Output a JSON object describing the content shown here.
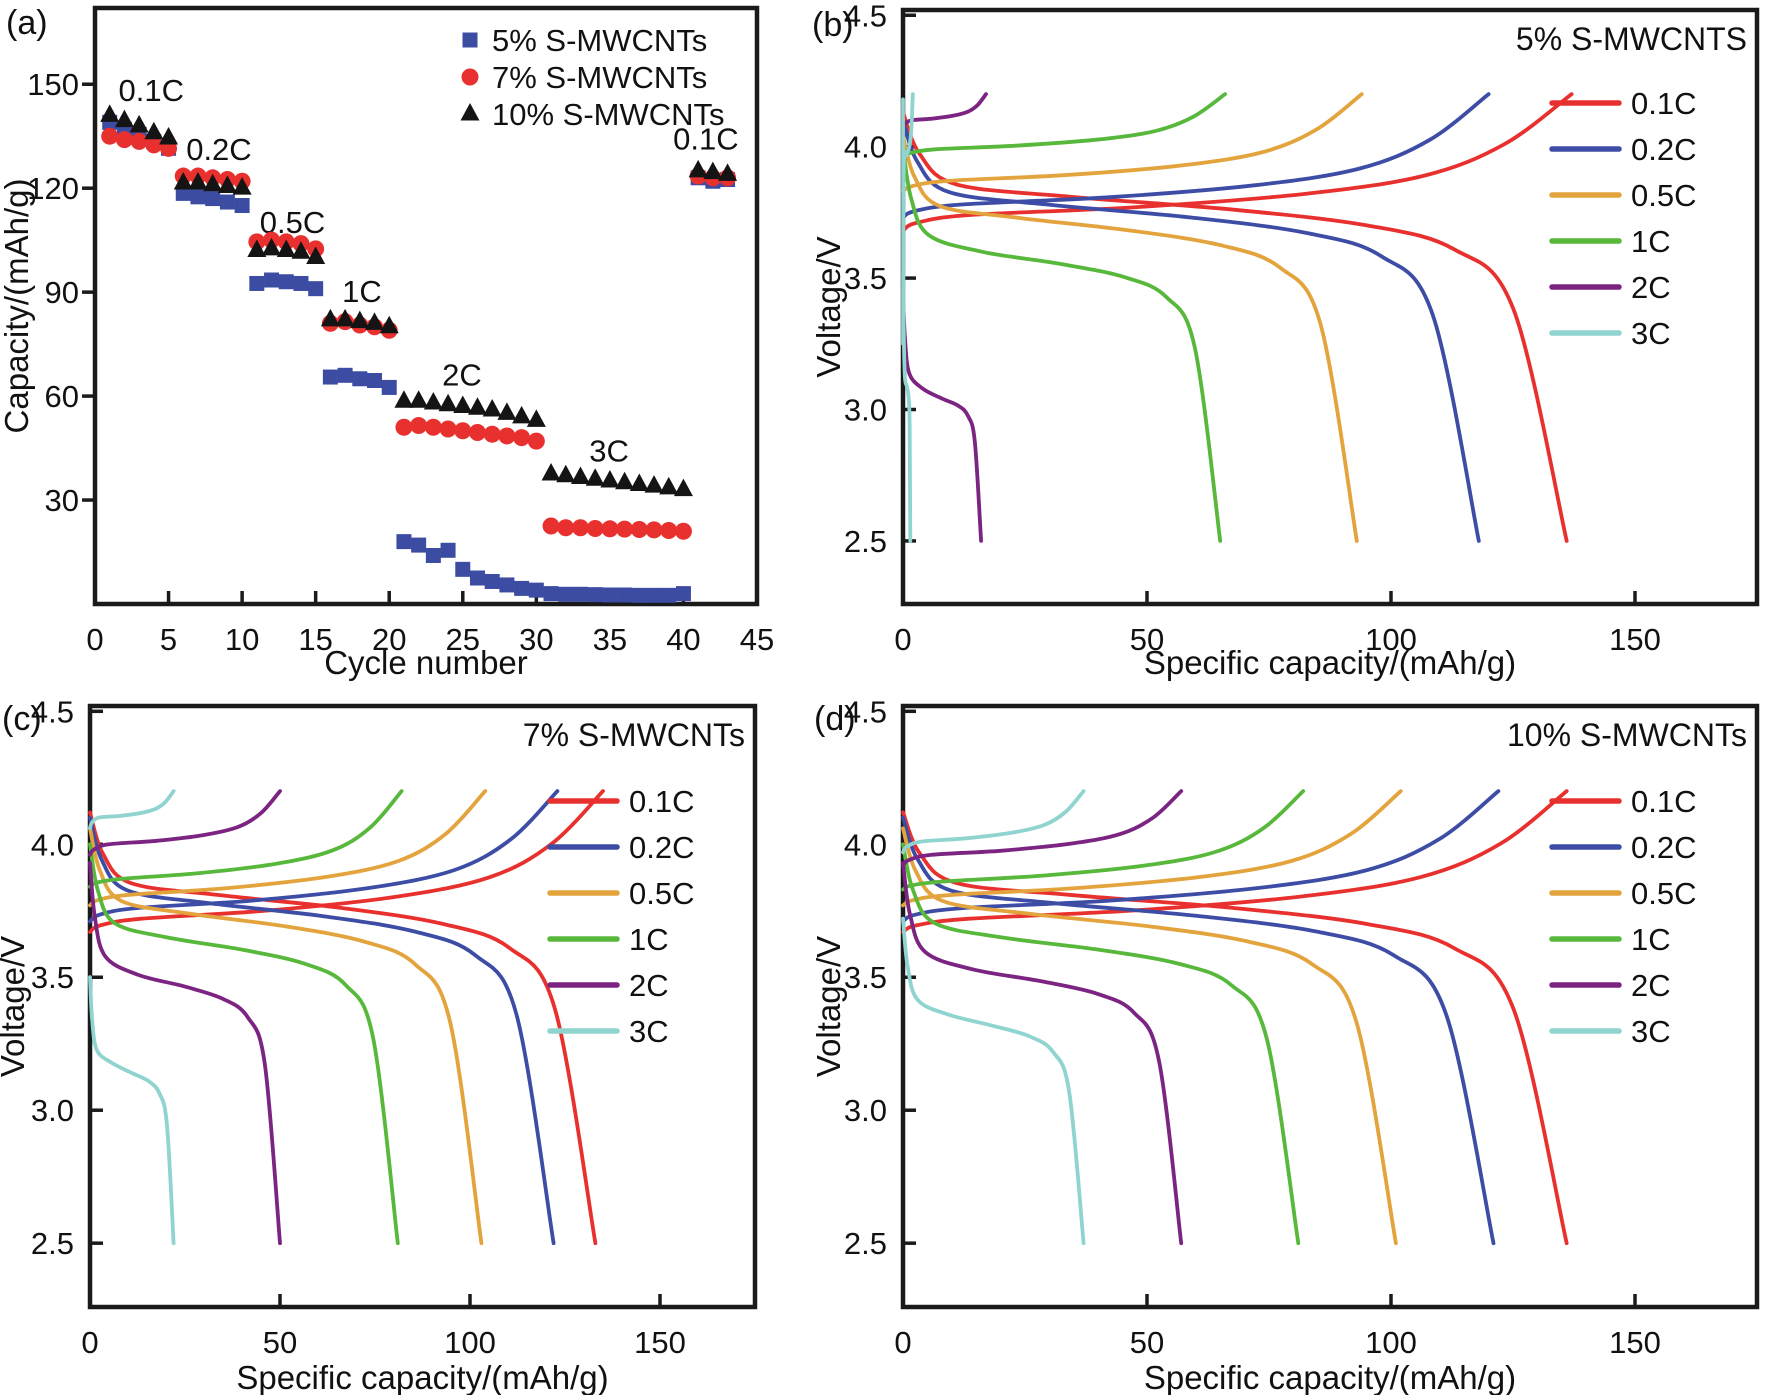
{
  "panel_letters": {
    "a": "(a)",
    "b": "(b)",
    "c": "(c)",
    "d": "(d)"
  },
  "colors": {
    "red": "#e8312e",
    "blue": "#3d4da5",
    "orange": "#e3a33d",
    "green": "#57b83b",
    "purple": "#7b2482",
    "cyan": "#8fd4cf",
    "black": "#141414",
    "scatter_blue": "#3c4ca3",
    "axis": "#1a1a1a"
  },
  "chart_data": [
    {
      "panel": "a",
      "type": "scatter",
      "xlabel": "Cycle number",
      "ylabel": "Capacity/(mAh/g)",
      "xlim": [
        0,
        45
      ],
      "ylim": [
        0,
        172
      ],
      "xticks": [
        {
          "v": 0,
          "l": "0"
        },
        {
          "v": 5,
          "l": "5"
        },
        {
          "v": 10,
          "l": "10"
        },
        {
          "v": 15,
          "l": "15"
        },
        {
          "v": 20,
          "l": "20"
        },
        {
          "v": 25,
          "l": "25"
        },
        {
          "v": 30,
          "l": "30"
        },
        {
          "v": 35,
          "l": "35"
        },
        {
          "v": 40,
          "l": "40"
        },
        {
          "v": 45,
          "l": "45"
        }
      ],
      "yticks": [
        {
          "v": 30,
          "l": "30"
        },
        {
          "v": 60,
          "l": "60"
        },
        {
          "v": 90,
          "l": "90"
        },
        {
          "v": 120,
          "l": "120"
        },
        {
          "v": 150,
          "l": "150"
        }
      ],
      "rate_labels": [
        {
          "t": "0.1C",
          "x": 1.6,
          "y": 148
        },
        {
          "t": "0.2C",
          "x": 6.2,
          "y": 131
        },
        {
          "t": "0.5C",
          "x": 11.2,
          "y": 110
        },
        {
          "t": "1C",
          "x": 16.8,
          "y": 90
        },
        {
          "t": "2C",
          "x": 23.6,
          "y": 66
        },
        {
          "t": "3C",
          "x": 33.6,
          "y": 44
        },
        {
          "t": "0.1C",
          "x": 39.3,
          "y": 134
        }
      ],
      "legend": [
        {
          "label": "5% S-MWCNTs",
          "marker": "square",
          "color": "#3c4ca3"
        },
        {
          "label": "7% S-MWCNTs",
          "marker": "circle",
          "color": "#e8312e"
        },
        {
          "label": "10% S-MWCNTs",
          "marker": "triangle",
          "color": "#141414"
        }
      ],
      "series": [
        {
          "name": "5% S-MWCNTs",
          "marker": "square",
          "color": "#3c4ca3",
          "points": [
            [
              1,
              139
            ],
            [
              2,
              137
            ],
            [
              3,
              135.5
            ],
            [
              4,
              133.5
            ],
            [
              5,
              131.5
            ],
            [
              6,
              118.5
            ],
            [
              7,
              117.5
            ],
            [
              8,
              117
            ],
            [
              9,
              116
            ],
            [
              10,
              115
            ],
            [
              11,
              92.5
            ],
            [
              12,
              93.5
            ],
            [
              13,
              93
            ],
            [
              14,
              92.5
            ],
            [
              15,
              91
            ],
            [
              16,
              65.5
            ],
            [
              17,
              66
            ],
            [
              18,
              65
            ],
            [
              19,
              64.5
            ],
            [
              20,
              62.5
            ],
            [
              21,
              18
            ],
            [
              22,
              17
            ],
            [
              23,
              14
            ],
            [
              24,
              15.5
            ],
            [
              25,
              10
            ],
            [
              26,
              7.5
            ],
            [
              27,
              6.5
            ],
            [
              28,
              5.5
            ],
            [
              29,
              4.5
            ],
            [
              30,
              4
            ],
            [
              31,
              3
            ],
            [
              32,
              2.8
            ],
            [
              33,
              2.8
            ],
            [
              34,
              2.7
            ],
            [
              35,
              2.6
            ],
            [
              36,
              2.6
            ],
            [
              37,
              2.5
            ],
            [
              38,
              2.5
            ],
            [
              39,
              2.5
            ],
            [
              40,
              3
            ],
            [
              41,
              123
            ],
            [
              42,
              122
            ],
            [
              43,
              122.5
            ]
          ]
        },
        {
          "name": "7% S-MWCNTs",
          "marker": "circle",
          "color": "#e8312e",
          "points": [
            [
              1,
              135
            ],
            [
              2,
              134
            ],
            [
              3,
              133.5
            ],
            [
              4,
              132.5
            ],
            [
              5,
              131.5
            ],
            [
              6,
              123.5
            ],
            [
              7,
              123.5
            ],
            [
              8,
              123
            ],
            [
              9,
              122.5
            ],
            [
              10,
              122
            ],
            [
              11,
              104.5
            ],
            [
              12,
              105
            ],
            [
              13,
              104.5
            ],
            [
              14,
              104
            ],
            [
              15,
              102.5
            ],
            [
              16,
              81
            ],
            [
              17,
              81.5
            ],
            [
              18,
              80.5
            ],
            [
              19,
              80
            ],
            [
              20,
              79
            ],
            [
              21,
              51
            ],
            [
              22,
              51.5
            ],
            [
              23,
              51
            ],
            [
              24,
              50.5
            ],
            [
              25,
              50
            ],
            [
              26,
              49.5
            ],
            [
              27,
              49
            ],
            [
              28,
              48.5
            ],
            [
              29,
              48
            ],
            [
              30,
              47
            ],
            [
              31,
              22.5
            ],
            [
              32,
              22
            ],
            [
              33,
              22
            ],
            [
              34,
              21.8
            ],
            [
              35,
              21.7
            ],
            [
              36,
              21.6
            ],
            [
              37,
              21.5
            ],
            [
              38,
              21.4
            ],
            [
              39,
              21.2
            ],
            [
              40,
              21
            ],
            [
              41,
              123.5
            ],
            [
              42,
              123
            ],
            [
              43,
              123
            ]
          ]
        },
        {
          "name": "10% S-MWCNTs",
          "marker": "triangle",
          "color": "#141414",
          "points": [
            [
              1,
              141
            ],
            [
              2,
              139.5
            ],
            [
              3,
              138
            ],
            [
              4,
              136
            ],
            [
              5,
              134.5
            ],
            [
              6,
              121.5
            ],
            [
              7,
              121.5
            ],
            [
              8,
              121
            ],
            [
              9,
              120.5
            ],
            [
              10,
              120
            ],
            [
              11,
              102
            ],
            [
              12,
              102.5
            ],
            [
              13,
              102
            ],
            [
              14,
              101.5
            ],
            [
              15,
              100
            ],
            [
              16,
              82
            ],
            [
              17,
              82
            ],
            [
              18,
              81.5
            ],
            [
              19,
              81
            ],
            [
              20,
              80
            ],
            [
              21,
              58.5
            ],
            [
              22,
              58.5
            ],
            [
              23,
              58
            ],
            [
              24,
              57.5
            ],
            [
              25,
              57
            ],
            [
              26,
              56.5
            ],
            [
              27,
              56
            ],
            [
              28,
              55
            ],
            [
              29,
              54
            ],
            [
              30,
              53
            ],
            [
              31,
              37.5
            ],
            [
              32,
              37
            ],
            [
              33,
              36.5
            ],
            [
              34,
              36
            ],
            [
              35,
              35.5
            ],
            [
              36,
              35
            ],
            [
              37,
              34.5
            ],
            [
              38,
              34
            ],
            [
              39,
              33.5
            ],
            [
              40,
              33
            ],
            [
              41,
              125
            ],
            [
              42,
              124.5
            ],
            [
              43,
              124
            ]
          ]
        }
      ]
    },
    {
      "panel": "b",
      "type": "line",
      "title": "5% S-MWCNTS",
      "xlabel": "Specific capacity/(mAh/g)",
      "ylabel": "Voltage/V",
      "xlim": [
        0,
        175
      ],
      "ylim": [
        2.26,
        4.52
      ],
      "xticks": [
        {
          "v": 0,
          "l": "0"
        },
        {
          "v": 50,
          "l": "50"
        },
        {
          "v": 100,
          "l": "100"
        },
        {
          "v": 150,
          "l": "150"
        }
      ],
      "yticks": [
        {
          "v": 2.5,
          "l": "2.5"
        },
        {
          "v": 3.0,
          "l": "3.0"
        },
        {
          "v": 3.5,
          "l": "3.5"
        },
        {
          "v": 4.0,
          "l": "4.0"
        },
        {
          "v": 4.5,
          "l": "4.5"
        }
      ],
      "charge_top_voltage": 4.2,
      "discharge_cut_voltage": 2.5,
      "series": [
        {
          "rate": "0.1C",
          "color": "#e8312e",
          "charge": {
            "q": 137,
            "v0": 3.68,
            "vp": 3.74
          },
          "discharge": {
            "q": 136,
            "v0": 4.13,
            "vp": 3.78
          }
        },
        {
          "rate": "0.2C",
          "color": "#3d4da5",
          "charge": {
            "q": 120,
            "v0": 3.73,
            "vp": 3.78
          },
          "discharge": {
            "q": 118,
            "v0": 4.1,
            "vp": 3.75
          }
        },
        {
          "rate": "0.5C",
          "color": "#e3a33d",
          "charge": {
            "q": 94,
            "v0": 3.83,
            "vp": 3.87
          },
          "discharge": {
            "q": 93,
            "v0": 4.04,
            "vp": 3.7
          }
        },
        {
          "rate": "1C",
          "color": "#57b83b",
          "charge": {
            "q": 66,
            "v0": 3.96,
            "vp": 3.99
          },
          "discharge": {
            "q": 65,
            "v0": 4.0,
            "vp": 3.57
          }
        },
        {
          "rate": "2C",
          "color": "#7b2482",
          "charge": {
            "q": 17,
            "v0": 4.07,
            "vp": 4.1
          },
          "discharge": {
            "q": 16,
            "v0": 3.45,
            "vp": 3.05
          }
        },
        {
          "rate": "3C",
          "color": "#8fd4cf",
          "charge": {
            "q": 2,
            "v0": 3.25,
            "vp": 3.95
          },
          "discharge": {
            "q": 1.5,
            "v0": 4.18,
            "vp": 3.1
          }
        }
      ]
    },
    {
      "panel": "c",
      "type": "line",
      "title": "7% S-MWCNTs",
      "xlabel": "Specific capacity/(mAh/g)",
      "ylabel": "Voltage/V",
      "xlim": [
        0,
        175
      ],
      "ylim": [
        2.26,
        4.52
      ],
      "xticks": [
        {
          "v": 0,
          "l": "0"
        },
        {
          "v": 50,
          "l": "50"
        },
        {
          "v": 100,
          "l": "100"
        },
        {
          "v": 150,
          "l": "150"
        }
      ],
      "yticks": [
        {
          "v": 2.5,
          "l": "2.5"
        },
        {
          "v": 3.0,
          "l": "3.0"
        },
        {
          "v": 3.5,
          "l": "3.5"
        },
        {
          "v": 4.0,
          "l": "4.0"
        },
        {
          "v": 4.5,
          "l": "4.5"
        }
      ],
      "charge_top_voltage": 4.2,
      "discharge_cut_voltage": 2.5,
      "series": [
        {
          "rate": "0.1C",
          "color": "#e8312e",
          "charge": {
            "q": 135,
            "v0": 3.67,
            "vp": 3.72
          },
          "discharge": {
            "q": 133,
            "v0": 4.12,
            "vp": 3.78
          }
        },
        {
          "rate": "0.2C",
          "color": "#3d4da5",
          "charge": {
            "q": 123,
            "v0": 3.71,
            "vp": 3.76
          },
          "discharge": {
            "q": 122,
            "v0": 4.1,
            "vp": 3.75
          }
        },
        {
          "rate": "0.5C",
          "color": "#e3a33d",
          "charge": {
            "q": 104,
            "v0": 3.77,
            "vp": 3.81
          },
          "discharge": {
            "q": 103,
            "v0": 4.06,
            "vp": 3.71
          }
        },
        {
          "rate": "1C",
          "color": "#57b83b",
          "charge": {
            "q": 82,
            "v0": 3.84,
            "vp": 3.87
          },
          "discharge": {
            "q": 81,
            "v0": 4.0,
            "vp": 3.62
          }
        },
        {
          "rate": "2C",
          "color": "#7b2482",
          "charge": {
            "q": 50,
            "v0": 3.96,
            "vp": 4.0
          },
          "discharge": {
            "q": 50,
            "v0": 3.93,
            "vp": 3.48
          }
        },
        {
          "rate": "3C",
          "color": "#8fd4cf",
          "charge": {
            "q": 22,
            "v0": 4.06,
            "vp": 4.1
          },
          "discharge": {
            "q": 22,
            "v0": 3.5,
            "vp": 3.15
          }
        }
      ]
    },
    {
      "panel": "d",
      "type": "line",
      "title": "10% S-MWCNTs",
      "xlabel": "Specific capacity/(mAh/g)",
      "ylabel": "Voltage/V",
      "xlim": [
        0,
        175
      ],
      "ylim": [
        2.26,
        4.52
      ],
      "xticks": [
        {
          "v": 0,
          "l": "0"
        },
        {
          "v": 50,
          "l": "50"
        },
        {
          "v": 100,
          "l": "100"
        },
        {
          "v": 150,
          "l": "150"
        }
      ],
      "yticks": [
        {
          "v": 2.5,
          "l": "2.5"
        },
        {
          "v": 3.0,
          "l": "3.0"
        },
        {
          "v": 3.5,
          "l": "3.5"
        },
        {
          "v": 4.0,
          "l": "4.0"
        },
        {
          "v": 4.5,
          "l": "4.5"
        }
      ],
      "charge_top_voltage": 4.2,
      "discharge_cut_voltage": 2.5,
      "series": [
        {
          "rate": "0.1C",
          "color": "#e8312e",
          "charge": {
            "q": 136,
            "v0": 3.67,
            "vp": 3.72
          },
          "discharge": {
            "q": 136,
            "v0": 4.12,
            "vp": 3.78
          }
        },
        {
          "rate": "0.2C",
          "color": "#3d4da5",
          "charge": {
            "q": 122,
            "v0": 3.71,
            "vp": 3.76
          },
          "discharge": {
            "q": 121,
            "v0": 4.1,
            "vp": 3.75
          }
        },
        {
          "rate": "0.5C",
          "color": "#e3a33d",
          "charge": {
            "q": 102,
            "v0": 3.77,
            "vp": 3.81
          },
          "discharge": {
            "q": 101,
            "v0": 4.06,
            "vp": 3.71
          }
        },
        {
          "rate": "1C",
          "color": "#57b83b",
          "charge": {
            "q": 82,
            "v0": 3.83,
            "vp": 3.86
          },
          "discharge": {
            "q": 81,
            "v0": 4.0,
            "vp": 3.62
          }
        },
        {
          "rate": "2C",
          "color": "#7b2482",
          "charge": {
            "q": 57,
            "v0": 3.92,
            "vp": 3.96
          },
          "discharge": {
            "q": 57,
            "v0": 3.93,
            "vp": 3.5
          }
        },
        {
          "rate": "3C",
          "color": "#8fd4cf",
          "charge": {
            "q": 37,
            "v0": 3.97,
            "vp": 4.01
          },
          "discharge": {
            "q": 37,
            "v0": 3.72,
            "vp": 3.33
          }
        }
      ]
    }
  ]
}
